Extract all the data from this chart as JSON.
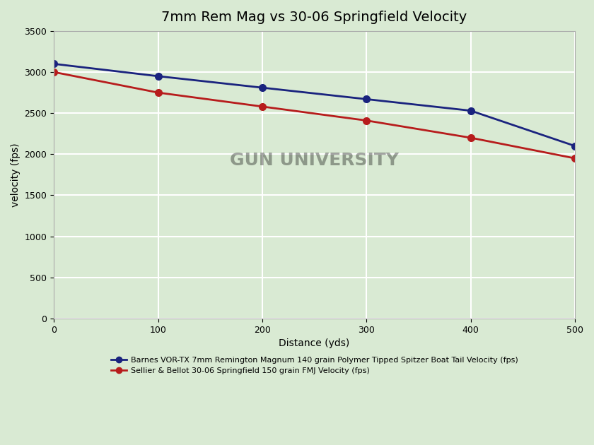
{
  "title": "7mm Rem Mag vs 30-06 Springfield Velocity",
  "xlabel": "Distance (yds)",
  "ylabel": "velocity (fps)",
  "x": [
    0,
    100,
    200,
    300,
    400,
    500
  ],
  "line1": {
    "y": [
      3100,
      2950,
      2810,
      2670,
      2530,
      2100
    ],
    "color": "#1a237e",
    "label": "Barnes VOR-TX 7mm Remington Magnum 140 grain Polymer Tipped Spitzer Boat Tail Velocity (fps)"
  },
  "line2": {
    "y": [
      3000,
      2750,
      2580,
      2410,
      2200,
      1950
    ],
    "color": "#b71c1c",
    "label": "Sellier & Bellot 30-06 Springfield 150 grain FMJ Velocity (fps)"
  },
  "ylim": [
    0,
    3500
  ],
  "xlim": [
    0,
    500
  ],
  "yticks": [
    0,
    500,
    1000,
    1500,
    2000,
    2500,
    3000,
    3500
  ],
  "xticks": [
    0,
    100,
    200,
    300,
    400,
    500
  ],
  "background_color": "#d9ead3",
  "grid_color": "#ffffff",
  "title_fontsize": 14,
  "label_fontsize": 10,
  "tick_fontsize": 9,
  "legend_fontsize": 8
}
